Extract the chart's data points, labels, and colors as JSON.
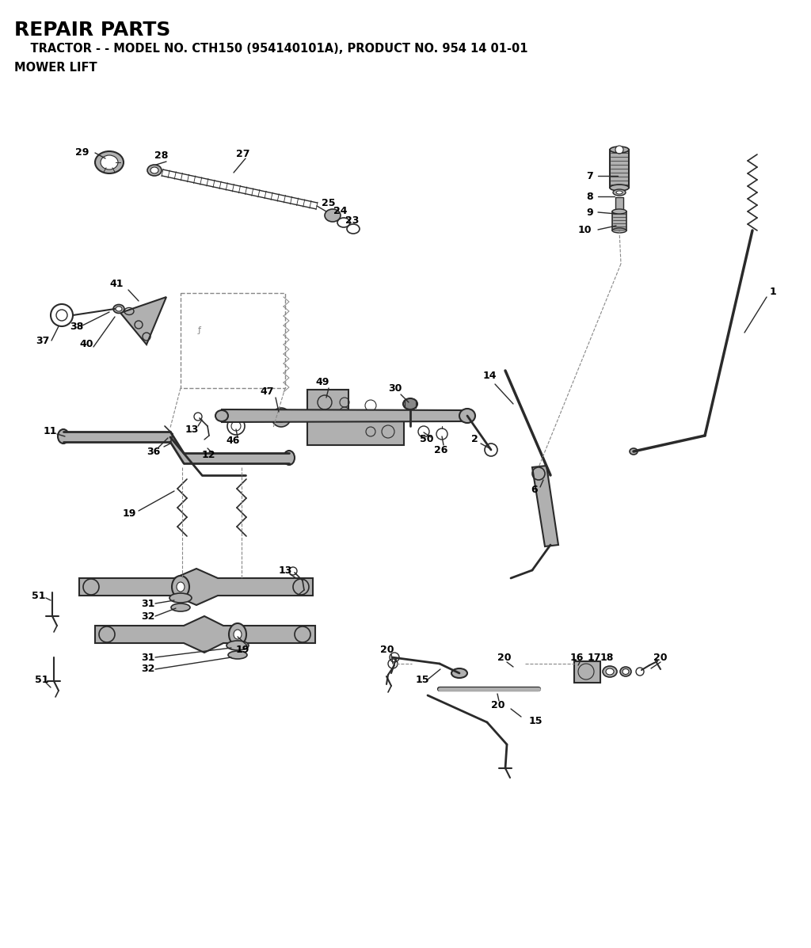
{
  "title": "REPAIR PARTS",
  "subtitle": "    TRACTOR - - MODEL NO. CTH150 (954140101A), PRODUCT NO. 954 14 01-01",
  "section": "MOWER LIFT",
  "bg_color": "#ffffff",
  "gray": "#2a2a2a",
  "lgray": "#888888",
  "partgray": "#b0b0b0",
  "lw_thin": 0.8,
  "lw_med": 1.2,
  "lw_thick": 2.0,
  "lw_vthick": 3.0
}
